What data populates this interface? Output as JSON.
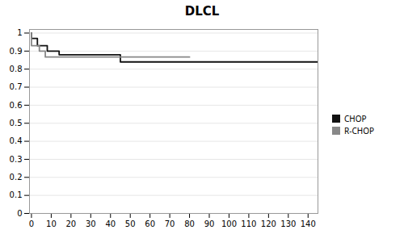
{
  "chart_data": {
    "type": "step",
    "title": "DLCL",
    "series": [
      {
        "name": "CHOP",
        "color": "#111111",
        "x": [
          0,
          2,
          3,
          7,
          8,
          13,
          14,
          20,
          21,
          45,
          46,
          145
        ],
        "values": [
          1.0,
          0.97,
          0.97,
          0.93,
          0.93,
          0.9,
          0.9,
          0.88,
          0.88,
          0.88,
          0.84,
          0.84
        ]
      },
      {
        "name": "R-CHOP",
        "color": "#888888",
        "x": [
          0,
          3,
          4,
          6,
          7,
          14,
          15,
          47,
          48,
          80
        ],
        "values": [
          1.0,
          0.93,
          0.93,
          0.9,
          0.9,
          0.867,
          0.867,
          0.867,
          0.867,
          0.867
        ]
      }
    ],
    "xlim": [
      -1,
      145
    ],
    "ylim": [
      0,
      1.02
    ],
    "xticks": [
      0,
      10,
      20,
      30,
      40,
      50,
      60,
      70,
      80,
      90,
      100,
      110,
      120,
      130,
      140
    ],
    "yticks": [
      0,
      0.1,
      0.2,
      0.3,
      0.4,
      0.5,
      0.6,
      0.7,
      0.8,
      0.9,
      1
    ],
    "grid": "y",
    "legend": "right"
  }
}
